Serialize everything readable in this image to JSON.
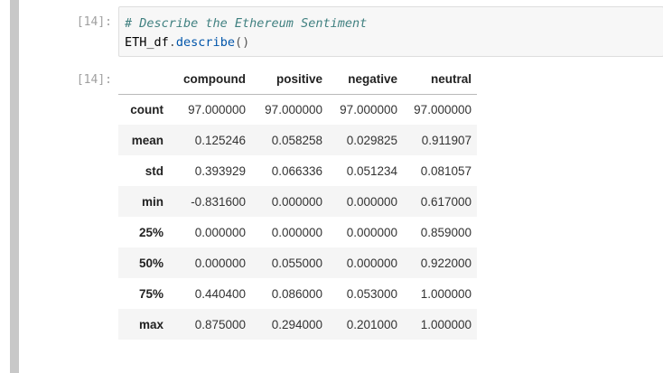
{
  "cell_input": {
    "prompt": "[14]:",
    "comment": "# Describe the Ethereum Sentiment",
    "code": {
      "object": "ETH_df",
      "dot": ".",
      "method": "describe",
      "parens": "()"
    }
  },
  "cell_output": {
    "prompt": "[14]:",
    "columns": [
      "compound",
      "positive",
      "negative",
      "neutral"
    ],
    "rows": [
      {
        "label": "count",
        "values": [
          "97.000000",
          "97.000000",
          "97.000000",
          "97.000000"
        ]
      },
      {
        "label": "mean",
        "values": [
          "0.125246",
          "0.058258",
          "0.029825",
          "0.911907"
        ]
      },
      {
        "label": "std",
        "values": [
          "0.393929",
          "0.066336",
          "0.051234",
          "0.081057"
        ]
      },
      {
        "label": "min",
        "values": [
          "-0.831600",
          "0.000000",
          "0.000000",
          "0.617000"
        ]
      },
      {
        "label": "25%",
        "values": [
          "0.000000",
          "0.000000",
          "0.000000",
          "0.859000"
        ]
      },
      {
        "label": "50%",
        "values": [
          "0.000000",
          "0.055000",
          "0.000000",
          "0.922000"
        ]
      },
      {
        "label": "75%",
        "values": [
          "0.440400",
          "0.086000",
          "0.053000",
          "1.000000"
        ]
      },
      {
        "label": "max",
        "values": [
          "0.875000",
          "0.294000",
          "0.201000",
          "1.000000"
        ]
      }
    ]
  },
  "colors": {
    "cell_selected_bar": "#c8c8c8",
    "code_background": "#f7f7f7",
    "comment": "#408080",
    "method": "#0055aa",
    "row_stripe": "#f5f5f5"
  }
}
